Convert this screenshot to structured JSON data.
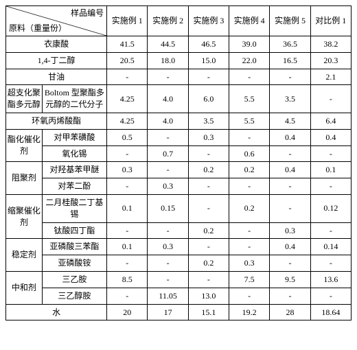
{
  "type": "table",
  "header": {
    "diag_top": "样品编号",
    "diag_bottom": "原料（重量份）",
    "cols": [
      "实施例 1",
      "实施例 2",
      "实施例 3",
      "实施例 4",
      "实施例 5",
      "对比例 1"
    ]
  },
  "rows": [
    {
      "cat1": null,
      "cat2": "衣康酸",
      "span": 2,
      "vals": [
        "41.5",
        "44.5",
        "46.5",
        "39.0",
        "36.5",
        "38.2"
      ]
    },
    {
      "cat1": null,
      "cat2": "1,4-丁二醇",
      "span": 2,
      "vals": [
        "20.5",
        "18.0",
        "15.0",
        "22.0",
        "16.5",
        "20.3"
      ]
    },
    {
      "cat1": null,
      "cat2": "甘油",
      "span": 2,
      "vals": [
        "-",
        "-",
        "-",
        "-",
        "-",
        "2.1"
      ]
    },
    {
      "cat1": "超支化聚酯多元醇",
      "cat2": "Boltom 型聚酯多元醇的二代分子",
      "span": 1,
      "vals": [
        "4.25",
        "4.0",
        "6.0",
        "5.5",
        "3.5",
        "-"
      ]
    },
    {
      "cat1": null,
      "cat2": "环氧丙烯酸酯",
      "span": 2,
      "vals": [
        "4.25",
        "4.0",
        "3.5",
        "5.5",
        "4.5",
        "6.4"
      ]
    },
    {
      "cat1": "酯化催化剂",
      "cat2": "对甲苯磺酸",
      "span": 1,
      "group": 2,
      "vals": [
        "0.5",
        "-",
        "0.3",
        "-",
        "0.4",
        "0.4"
      ]
    },
    {
      "cat1": null,
      "cat2": "氧化锡",
      "span": 1,
      "vals": [
        "-",
        "0.7",
        "-",
        "0.6",
        "-",
        "-"
      ]
    },
    {
      "cat1": "阻聚剂",
      "cat2": "对羟基苯甲醚",
      "span": 1,
      "group": 2,
      "vals": [
        "0.3",
        "-",
        "0.2",
        "0.2",
        "0.4",
        "0.1"
      ]
    },
    {
      "cat1": null,
      "cat2": "对苯二酚",
      "span": 1,
      "vals": [
        "-",
        "0.3",
        "-",
        "-",
        "-",
        "-"
      ]
    },
    {
      "cat1": "缩聚催化剂",
      "cat2": "二月桂酸二丁基锡",
      "span": 1,
      "group": 2,
      "vals": [
        "0.1",
        "0.15",
        "-",
        "0.2",
        "-",
        "0.12"
      ]
    },
    {
      "cat1": null,
      "cat2": "钛酸四丁酯",
      "span": 1,
      "vals": [
        "-",
        "-",
        "0.2",
        "-",
        "0.3",
        "-"
      ]
    },
    {
      "cat1": "稳定剂",
      "cat2": "亚磷酸三苯酯",
      "span": 1,
      "group": 2,
      "vals": [
        "0.1",
        "0.3",
        "-",
        "-",
        "0.4",
        "0.14"
      ]
    },
    {
      "cat1": null,
      "cat2": "亚磷酸铵",
      "span": 1,
      "vals": [
        "-",
        "-",
        "0.2",
        "0.3",
        "-",
        "-"
      ]
    },
    {
      "cat1": "中和剂",
      "cat2": "三乙胺",
      "span": 1,
      "group": 2,
      "vals": [
        "8.5",
        "-",
        "-",
        "7.5",
        "9.5",
        "13.6"
      ]
    },
    {
      "cat1": null,
      "cat2": "三乙醇胺",
      "span": 1,
      "vals": [
        "-",
        "11.05",
        "13.0",
        "-",
        "-",
        "-"
      ]
    },
    {
      "cat1": null,
      "cat2": "水",
      "span": 2,
      "vals": [
        "20",
        "17",
        "15.1",
        "19.2",
        "28",
        "18.64"
      ]
    }
  ],
  "styling": {
    "border_color": "#000000",
    "background_color": "#ffffff",
    "font_size": 12,
    "font_weight": "normal",
    "cell_align": "center"
  }
}
